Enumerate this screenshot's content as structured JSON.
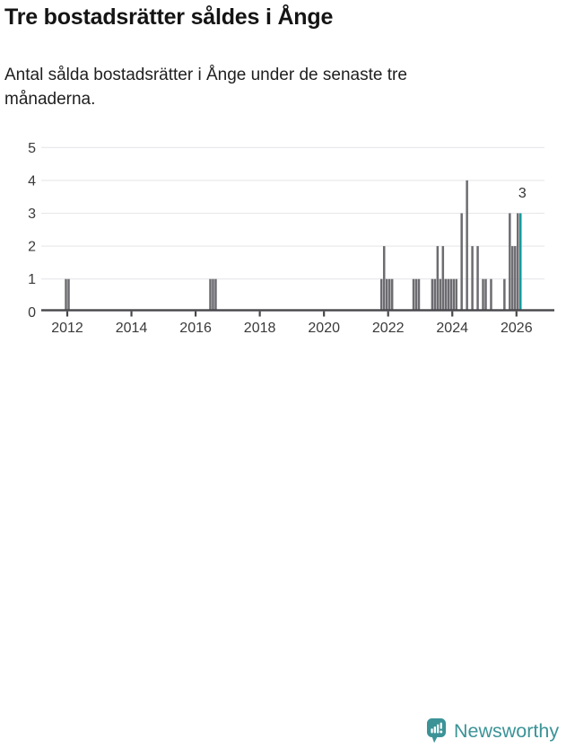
{
  "header": {
    "title": "Tre bostadsrätter såldes i Ånge",
    "subtitle": "Antal sålda bostadsrätter i Ånge under de senaste tre månaderna."
  },
  "chart_data": {
    "type": "bar",
    "title": "Tre bostadsrätter såldes i Ånge",
    "subtitle": "Antal sålda bostadsrätter i Ånge under de senaste tre månaderna.",
    "x_start": "2011-03",
    "x_end": "2026-02",
    "x_tick_labels": [
      "2012",
      "2014",
      "2016",
      "2018",
      "2020",
      "2022",
      "2024",
      "2026"
    ],
    "y_tick_labels": [
      "0",
      "1",
      "2",
      "3",
      "4",
      "5"
    ],
    "ylim": [
      0,
      5
    ],
    "grid": "horizontal",
    "legend": "none",
    "points": [
      [
        "2011-12",
        1
      ],
      [
        "2012-01",
        1
      ],
      [
        "2016-06",
        1
      ],
      [
        "2016-07",
        1
      ],
      [
        "2016-08",
        1
      ],
      [
        "2021-10",
        1
      ],
      [
        "2021-11",
        2
      ],
      [
        "2021-12",
        1
      ],
      [
        "2022-01",
        1
      ],
      [
        "2022-02",
        1
      ],
      [
        "2022-10",
        1
      ],
      [
        "2022-11",
        1
      ],
      [
        "2022-12",
        1
      ],
      [
        "2023-05",
        1
      ],
      [
        "2023-06",
        1
      ],
      [
        "2023-07",
        2
      ],
      [
        "2023-08",
        1
      ],
      [
        "2023-09",
        2
      ],
      [
        "2023-10",
        1
      ],
      [
        "2023-11",
        1
      ],
      [
        "2023-12",
        1
      ],
      [
        "2024-01",
        1
      ],
      [
        "2024-02",
        1
      ],
      [
        "2024-04",
        3
      ],
      [
        "2024-06",
        4
      ],
      [
        "2024-08",
        2
      ],
      [
        "2024-10",
        2
      ],
      [
        "2024-12",
        1
      ],
      [
        "2025-01",
        1
      ],
      [
        "2025-03",
        1
      ],
      [
        "2025-08",
        1
      ],
      [
        "2025-10",
        3
      ],
      [
        "2025-11",
        2
      ],
      [
        "2025-12",
        2
      ],
      [
        "2026-01",
        3
      ],
      [
        "2026-02",
        3
      ]
    ],
    "highlight_month": "2026-02",
    "annotation": {
      "text": "3",
      "month": "2026-02",
      "value": 3
    },
    "colors": {
      "bar": "#6c6c71",
      "highlight": "#149a9d",
      "grid": "#e7e7e9",
      "axis": "#47474b",
      "labels": "#3a3a3a",
      "annotation": "#333333"
    }
  },
  "footer": {
    "brand": "Newsworthy",
    "brand_color": "#3b9397"
  }
}
